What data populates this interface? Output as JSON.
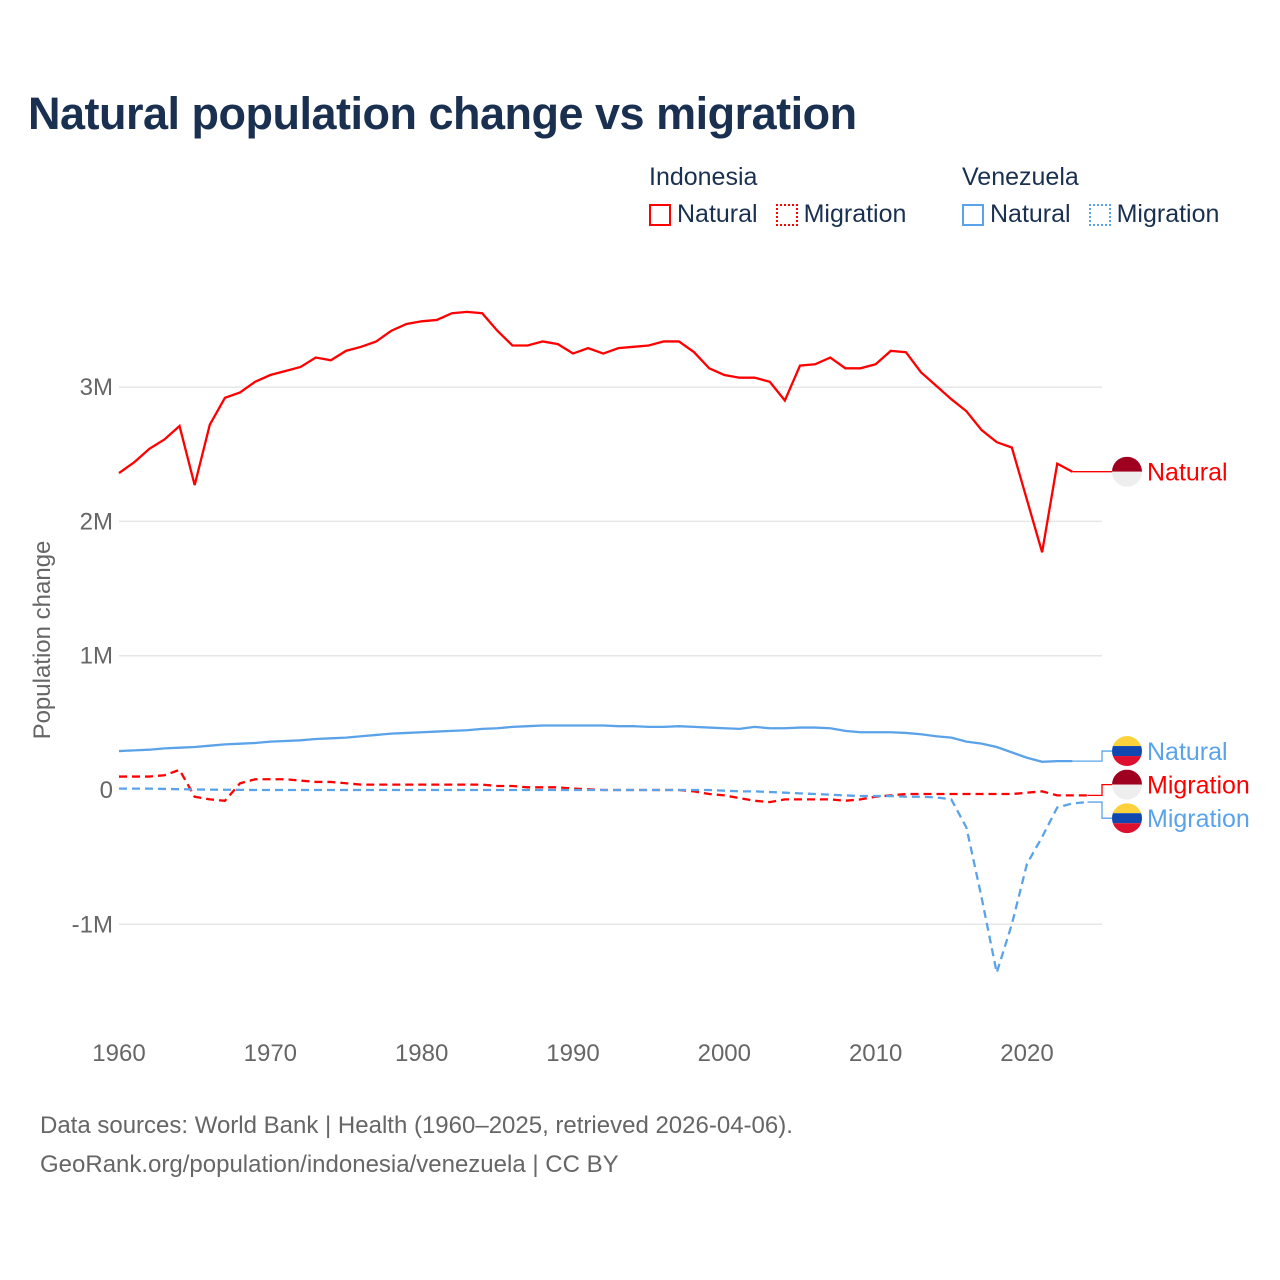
{
  "title": "Natural population change vs migration",
  "legend": [
    {
      "group": "Indonesia",
      "items": [
        {
          "label": "Natural",
          "color": "#ff0000",
          "style": "solid"
        },
        {
          "label": "Migration",
          "color": "#ff0000",
          "style": "dotted"
        }
      ]
    },
    {
      "group": "Venezuela",
      "items": [
        {
          "label": "Natural",
          "color": "#5ba3e8",
          "style": "solid"
        },
        {
          "label": "Migration",
          "color": "#5ba3e8",
          "style": "dotted"
        }
      ]
    }
  ],
  "footer": {
    "line1": "Data sources: World Bank | Health (1960–2025, retrieved 2026-04-06).",
    "line2": "GeoRank.org/population/indonesia/venezuela | CC BY"
  },
  "chart_data": {
    "type": "line",
    "title": "Natural population change vs migration",
    "xlabel": "",
    "ylabel": "Population change",
    "xlim": [
      1960,
      2025
    ],
    "ylim": [
      -1.6,
      3.8
    ],
    "x_ticks": [
      1960,
      1970,
      1980,
      1990,
      2000,
      2010,
      2020
    ],
    "y_ticks": [
      {
        "v": -1,
        "label": "-1M"
      },
      {
        "v": 0,
        "label": "0"
      },
      {
        "v": 1,
        "label": "1M"
      },
      {
        "v": 2,
        "label": "2M"
      },
      {
        "v": 3,
        "label": "3M"
      }
    ],
    "grid": true,
    "units": "millions",
    "series": [
      {
        "name": "Indonesia Natural",
        "end_label": "Natural",
        "color": "#ff0000",
        "dash": "",
        "start": 1960,
        "label_y": 2.37,
        "values": [
          2.36,
          2.44,
          2.54,
          2.61,
          2.71,
          2.27,
          2.72,
          2.92,
          2.96,
          3.04,
          3.09,
          3.12,
          3.15,
          3.22,
          3.2,
          3.27,
          3.3,
          3.34,
          3.42,
          3.47,
          3.49,
          3.5,
          3.55,
          3.56,
          3.55,
          3.42,
          3.31,
          3.31,
          3.34,
          3.32,
          3.25,
          3.29,
          3.25,
          3.29,
          3.3,
          3.31,
          3.34,
          3.34,
          3.26,
          3.14,
          3.09,
          3.07,
          3.07,
          3.04,
          2.9,
          3.16,
          3.17,
          3.22,
          3.14,
          3.14,
          3.17,
          3.27,
          3.26,
          3.11,
          3.01,
          2.91,
          2.82,
          2.68,
          2.59,
          2.55,
          2.16,
          1.77,
          2.43,
          2.37
        ]
      },
      {
        "name": "Venezuela Natural",
        "end_label": "Natural",
        "color": "#5ba3e8",
        "dash": "",
        "start": 1960,
        "label_y": 0.29,
        "values": [
          0.29,
          0.295,
          0.3,
          0.31,
          0.315,
          0.32,
          0.33,
          0.34,
          0.345,
          0.35,
          0.36,
          0.365,
          0.37,
          0.38,
          0.385,
          0.39,
          0.4,
          0.41,
          0.42,
          0.425,
          0.43,
          0.435,
          0.44,
          0.445,
          0.455,
          0.46,
          0.47,
          0.475,
          0.48,
          0.48,
          0.48,
          0.48,
          0.48,
          0.475,
          0.475,
          0.47,
          0.47,
          0.475,
          0.47,
          0.465,
          0.46,
          0.455,
          0.47,
          0.46,
          0.46,
          0.465,
          0.465,
          0.46,
          0.44,
          0.43,
          0.43,
          0.43,
          0.425,
          0.415,
          0.4,
          0.39,
          0.36,
          0.345,
          0.32,
          0.28,
          0.24,
          0.21,
          0.215,
          0.215
        ]
      },
      {
        "name": "Indonesia Migration",
        "end_label": "Migration",
        "color": "#ff0000",
        "dash": "8,5",
        "start": 1960,
        "label_y": 0.04,
        "values": [
          0.1,
          0.1,
          0.1,
          0.11,
          0.15,
          -0.05,
          -0.07,
          -0.08,
          0.05,
          0.08,
          0.08,
          0.08,
          0.07,
          0.06,
          0.06,
          0.05,
          0.04,
          0.04,
          0.04,
          0.04,
          0.04,
          0.04,
          0.04,
          0.04,
          0.04,
          0.03,
          0.03,
          0.02,
          0.02,
          0.02,
          0.01,
          0.005,
          0,
          0,
          0,
          0,
          0,
          0,
          -0.01,
          -0.03,
          -0.04,
          -0.06,
          -0.08,
          -0.09,
          -0.07,
          -0.07,
          -0.07,
          -0.07,
          -0.08,
          -0.07,
          -0.05,
          -0.04,
          -0.03,
          -0.03,
          -0.03,
          -0.03,
          -0.03,
          -0.03,
          -0.03,
          -0.03,
          -0.02,
          -0.01,
          -0.04,
          -0.04,
          -0.04
        ]
      },
      {
        "name": "Venezuela Migration",
        "end_label": "Migration",
        "color": "#5ba3e8",
        "dash": "8,5",
        "start": 1960,
        "label_y": -0.21,
        "values": [
          0.01,
          0.01,
          0.01,
          0.008,
          0.006,
          0.004,
          0.003,
          0.002,
          0.001,
          0,
          0,
          0,
          0,
          0,
          0,
          0,
          0,
          0,
          0,
          0,
          0,
          0,
          0,
          0,
          0,
          0,
          0,
          0,
          0,
          0,
          0,
          0,
          0,
          0,
          0,
          0,
          0,
          0,
          0,
          0,
          -0.005,
          -0.01,
          -0.01,
          -0.015,
          -0.02,
          -0.025,
          -0.03,
          -0.035,
          -0.04,
          -0.045,
          -0.045,
          -0.045,
          -0.05,
          -0.05,
          -0.055,
          -0.07,
          -0.28,
          -0.8,
          -1.36,
          -1.0,
          -0.55,
          -0.35,
          -0.13,
          -0.1,
          -0.09
        ]
      }
    ]
  }
}
